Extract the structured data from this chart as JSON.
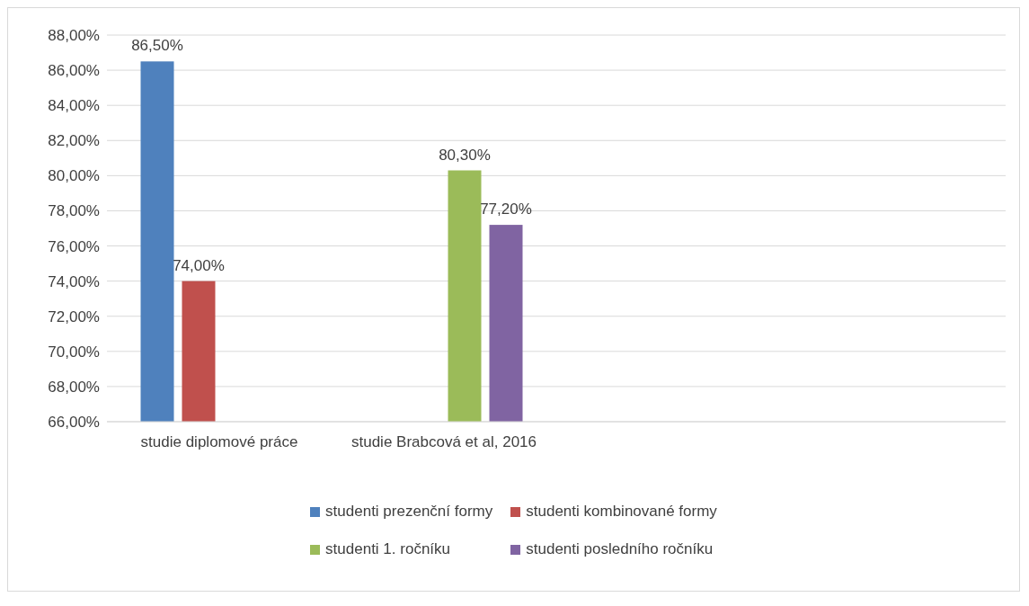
{
  "chart_data": {
    "type": "bar",
    "categories": [
      "studie diplomové práce",
      "studie Brabcová et al, 2016",
      null,
      null
    ],
    "series": [
      {
        "name": "studenti prezenční formy",
        "color": "#4f81bd",
        "values": [
          86.5,
          null,
          null,
          null
        ],
        "value_labels": [
          "86,50%",
          null,
          null,
          null
        ]
      },
      {
        "name": "studenti kombinované formy",
        "color": "#c0504d",
        "values": [
          74.0,
          null,
          null,
          null
        ],
        "value_labels": [
          "74,00%",
          null,
          null,
          null
        ]
      },
      {
        "name": "studenti 1. ročníku",
        "color": "#9bbb59",
        "values": [
          null,
          80.3,
          null,
          null
        ],
        "value_labels": [
          null,
          "80,30%",
          null,
          null
        ]
      },
      {
        "name": "studenti posledního ročníku",
        "color": "#8064a2",
        "values": [
          null,
          77.2,
          null,
          null
        ],
        "value_labels": [
          null,
          "77,20%",
          null,
          null
        ]
      }
    ],
    "ylim": [
      66,
      88
    ],
    "yticks": [
      {
        "value": 66,
        "label": "66,00%"
      },
      {
        "value": 68,
        "label": "68,00%"
      },
      {
        "value": 70,
        "label": "70,00%"
      },
      {
        "value": 72,
        "label": "72,00%"
      },
      {
        "value": 74,
        "label": "74,00%"
      },
      {
        "value": 76,
        "label": "76,00%"
      },
      {
        "value": 78,
        "label": "78,00%"
      },
      {
        "value": 80,
        "label": "80,00%"
      },
      {
        "value": 82,
        "label": "82,00%"
      },
      {
        "value": 84,
        "label": "84,00%"
      },
      {
        "value": 86,
        "label": "86,00%"
      },
      {
        "value": 88,
        "label": "88,00%"
      }
    ],
    "grid": "y",
    "legend": "bottom"
  }
}
